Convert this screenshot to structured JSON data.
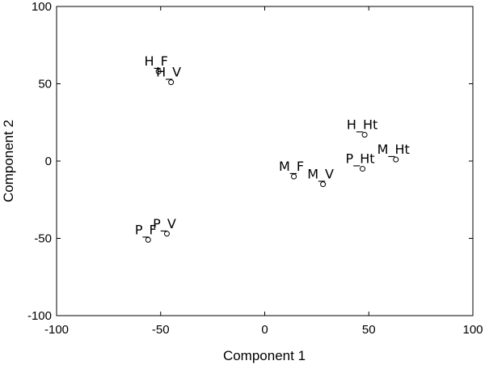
{
  "chart_data": {
    "type": "scatter",
    "title": "",
    "xlabel": "Component 1",
    "ylabel": "Component 2",
    "xlim": [
      -100,
      100
    ],
    "ylim": [
      -100,
      100
    ],
    "xticks": [
      -100,
      -50,
      0,
      50,
      100
    ],
    "yticks": [
      -100,
      -50,
      0,
      50,
      100
    ],
    "grid": false,
    "legend": "none",
    "marker": "open-circle",
    "points": [
      {
        "label": "H_F",
        "x": -51,
        "y": 58
      },
      {
        "label": "H_V",
        "x": -45,
        "y": 51
      },
      {
        "label": "P_F",
        "x": -56,
        "y": -51
      },
      {
        "label": "P_V",
        "x": -47,
        "y": -47
      },
      {
        "label": "M_F",
        "x": 14,
        "y": -10
      },
      {
        "label": "M_V",
        "x": 28,
        "y": -15
      },
      {
        "label": "H_Ht",
        "x": 48,
        "y": 17
      },
      {
        "label": "P_Ht",
        "x": 47,
        "y": -5
      },
      {
        "label": "M_Ht",
        "x": 63,
        "y": 1
      }
    ]
  }
}
